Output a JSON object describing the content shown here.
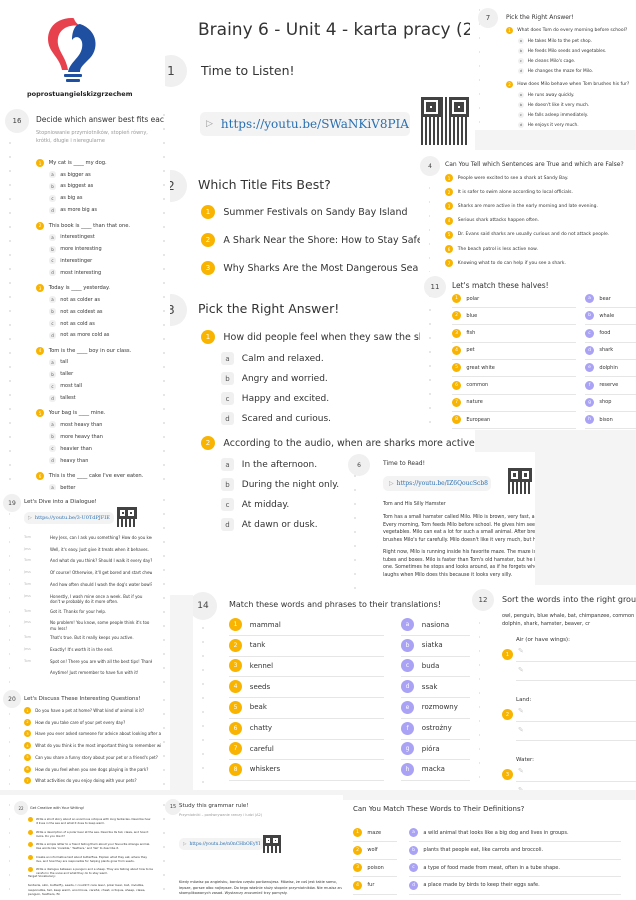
{
  "logo": {
    "text": "poprostuangielskizgrzechem",
    "colors": {
      "red": "#e8414e",
      "blue": "#1f4fa0"
    }
  },
  "main": {
    "title": "Brainy 6 - Unit 4 - karta pracy (2526)",
    "s1": {
      "num": "1",
      "title": "Time to Listen!",
      "link": "https://youtu.be/SWaNKiV8PIA"
    },
    "s2": {
      "num": "2",
      "title": "Which Title Fits Best?",
      "items": [
        "Summer Festivals on Sandy Bay Island",
        "A Shark Near the Shore: How to Stay Safe",
        "Why Sharks Are the Most Dangerous Sea An"
      ]
    },
    "s3": {
      "num": "3",
      "title": "Pick the Right Answer!",
      "questions": [
        {
          "q": "How did people feel when they saw the shar",
          "options": [
            "Calm and relaxed.",
            "Angry and worried.",
            "Happy and excited.",
            "Scared and curious."
          ]
        },
        {
          "q": "According to the audio, when are sharks more active?",
          "options": [
            "In the afternoon.",
            "During the night only.",
            "At midday.",
            "At dawn or dusk."
          ]
        }
      ]
    }
  },
  "s7": {
    "num": "7",
    "title": "Pick the Right Answer!",
    "questions": [
      {
        "q": "What does Tom do every morning before school?",
        "options": [
          "He takes Milo to the pet shop.",
          "He feeds Milo seeds and vegetables.",
          "He cleans Milo's cage.",
          "He changes the maze for Milo."
        ]
      },
      {
        "q": "How does Milo behave when Tom brushes his fur?",
        "options": [
          "He runs away quickly.",
          "He doesn't like it very much.",
          "He falls asleep immediately.",
          "He enjoys it very much."
        ]
      }
    ]
  },
  "s4": {
    "num": "4",
    "title": "Can You Tell which Sentences are True and which are False?",
    "items": [
      "People were excited to see a shark at Sandy Bay.",
      "It is safer to swim alone according to local officials.",
      "Sharks are more active in the early morning and late evening.",
      "Serious shark attacks happen often.",
      "Dr. Evans said sharks are usually curious and do not attack people.",
      "The beach patrol is less active now.",
      "Knowing what to do can help if you see a shark."
    ]
  },
  "s11": {
    "num": "11",
    "title": "Let's match these halves!",
    "left": [
      "polar",
      "blue",
      "fish",
      "pet",
      "great white",
      "common",
      "nature",
      "European"
    ],
    "right": [
      "bear",
      "whale",
      "food",
      "shark",
      "dolphin",
      "reserve",
      "shop",
      "bison"
    ]
  },
  "s16": {
    "num": "16",
    "title": "Decide which answer best fits eac",
    "subtitle": "Stopniowanie przymiotników, stopień równy, krótki, długie i nieregularne",
    "questions": [
      {
        "q": "My cat is ____ my dog.",
        "options": [
          "as bigger as",
          "as biggest as",
          "as big as",
          "as more big as"
        ]
      },
      {
        "q": "This book is ____ than that one.",
        "options": [
          "interestingest",
          "more interesting",
          "interestinger",
          "most interesting"
        ]
      },
      {
        "q": "Today is ____ yesterday.",
        "options": [
          "not as colder as",
          "not as coldest as",
          "not as cold as",
          "not as more cold as"
        ]
      },
      {
        "q": "Tom is the ____ boy in our class.",
        "options": [
          "tall",
          "taller",
          "most tall",
          "tallest"
        ]
      },
      {
        "q": "Your bag is ____ mine.",
        "options": [
          "most heavy than",
          "more heavy than",
          "heavier than",
          "heavy than"
        ]
      },
      {
        "q": "This is the ____ cake I've ever eaten.",
        "options": [
          "better"
        ]
      }
    ]
  },
  "s19": {
    "num": "19",
    "title": "Let's Dive into a Dialogue!",
    "link": "https://youtu.be/3-U0TdPJFIE",
    "lines": [
      {
        "s": "Tom",
        "t": "Hey Jess, can I ask you something? How do you keep"
      },
      {
        "s": "Jess",
        "t": "Well, it's easy. Just give it treats when it behaves."
      },
      {
        "s": "Tom",
        "t": "And what do you think? Should I walk it every day?"
      },
      {
        "s": "Jess",
        "t": "Of course! Otherwise, it'll get bored and start chewin"
      },
      {
        "s": "Tom",
        "t": "And how often should I wash the dog's water bowl?"
      },
      {
        "s": "Jess",
        "t": "Honestly, I wash mine once a week. But if you don't w probably do it more often."
      },
      {
        "s": "Tom",
        "t": "Got it. Thanks for your help."
      },
      {
        "s": "Jess",
        "t": "No problem! You know, some people think it's too mu less!"
      },
      {
        "s": "Tom",
        "t": "That's true. But it really keeps you active."
      },
      {
        "s": "Jess",
        "t": "Exactly! It's worth it in the end."
      },
      {
        "s": "Tom",
        "t": "Spot on! There you are with all the best tips! Thanks!"
      },
      {
        "s": "",
        "t": "Anytime! Just remember to have fun with it!"
      }
    ]
  },
  "s20": {
    "num": "20",
    "title": "Let's Discuss These Interesting Questions!",
    "items": [
      "Do you have a pet at home? What kind of animal is it?",
      "How do you take care of your pet every day?",
      "Have you ever asked someone for advice about looking after a",
      "What do you think is the most important thing to remember wi",
      "Can you share a funny story about your pet or a friend's pet?",
      "How do you feel when you see dogs playing in the park?",
      "What activities do you enjoy doing with your pets?"
    ]
  },
  "s6": {
    "num": "6",
    "title": "Time to Read!",
    "link": "https://youtu.be/IZ6QoucScb8",
    "story_title": "Tom and His Silly Hamster",
    "p1": "Tom has a small hamster called Milo. Milo is brown, very fast, and a little silly. Every morning, Tom feeds Milo before school. He gives him seeds and fresh vegetables. Milo can eat a lot for such a small animal. After breakfast, Tom brushes Milo's fur carefully. Milo doesn't like it very much, but his fur is softer and cleaner after brushing.",
    "p2": "Right now, Milo is running inside his favorite maze. The maze is made of colorful tubes and boxes. Milo is faster than Tom's old hamster, but he is not the smartest one. Sometimes he stops and looks around, as if he forgets where he is going. Tom laughs when Milo does this because it looks very silly."
  },
  "s14": {
    "num": "14",
    "title": "Match these words and phrases to their translations!",
    "left": [
      "mammal",
      "tank",
      "kennel",
      "seeds",
      "beak",
      "chatty",
      "careful",
      "whiskers"
    ],
    "right": [
      "nasiona",
      "siatka",
      "buda",
      "ssak",
      "rozmowny",
      "ostrożny",
      "pióra",
      "macka"
    ]
  },
  "s12": {
    "num": "12",
    "title": "Sort the words into the right group",
    "words": "owl, penguin, blue whale, bat, chimpanzee, common dolphin, shark, hamster, beaver, cr",
    "groups": [
      "Air (or have wings):",
      "Land:",
      "Water:"
    ]
  },
  "s22": {
    "num": "22",
    "title": "Get Creative with Your Writing!",
    "items": [
      "Write a short story about an enormous octopus with long tentacles. Describe how it lives in the sea and what it does to keep warm.",
      "Write a description of a polar bear at the sea. Describe its tail, claws, and how it looks. Do you like it?",
      "Write a simple letter to a friend telling them about your favourite strange animal. Use words like 'invisible,' 'feathers,' and 'tail' to describe it.",
      "Create an informative text about butterflies. Explain what they eat, where they live, and how they are responsible for helping plants grow from seeds.",
      "Write a dialogue between a penguin and a sheep. They are talking about how to be careful in the snow and what they do to stay warm."
    ],
    "vocab_label": "Target Vocabulary:",
    "vocab": "tentacle, skin, butterfly, seeds, I couldn't care less!, polar bear, bat, invisible, responsible, tail, keep warm, enormous, careful, chest, octopus, sheep, claws, penguin, feathers, fin"
  },
  "s15": {
    "num": "15",
    "title": "Study this grammar rule!",
    "subtitle": "Przymiotniki – porównywanie rzeczy i ludzi (A2)",
    "link": "https://youtu.be/n0nCHbOEyYI",
    "text": "Kiedy mówisz po angielsku, bardzo często porównujesz. Mówisz, że coś jest takie samo, lepsze, gorsze albo najlepsze. Do tego właśnie służy stopnie przymiotników. Nie musisz znać skomplikowanych zasad. Wystarczy zrozumieć trzy pomysły."
  },
  "defs": {
    "title": "Can You Match These Words to Their Definitions?",
    "words": [
      "maze",
      "wolf",
      "poison",
      "fur"
    ],
    "defs": [
      "a wild animal that looks like a big dog and lives in groups.",
      "plants that people eat, like carrots and broccoli.",
      "a type of food made from meat, often in a tube shape.",
      "a place made by birds to keep their eggs safe."
    ]
  },
  "colors": {
    "accent": "#f8b400",
    "purple": "#a9a2f5",
    "link": "#2a6fb0"
  }
}
